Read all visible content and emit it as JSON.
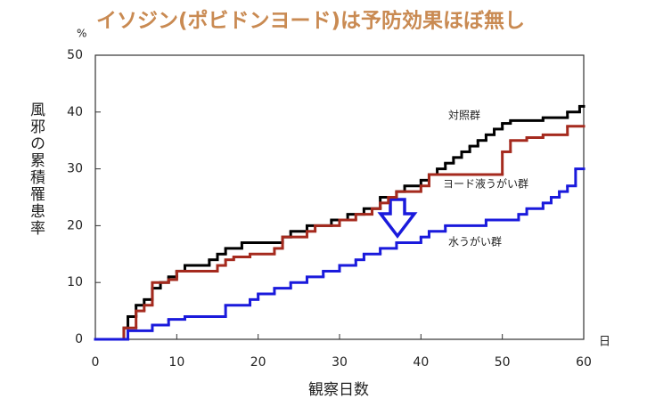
{
  "chart_data": {
    "type": "step",
    "title": "イソジン(ポビドンヨード)は予防効果ほぼ無し",
    "y_unit": "%",
    "x_unit": "日",
    "x_label": "観察日数",
    "y_label": "風邪の累積罹患率",
    "xlim": [
      0,
      60
    ],
    "xticks": [
      0,
      10,
      20,
      30,
      40,
      50,
      60
    ],
    "ylim": [
      0,
      50
    ],
    "yticks": [
      0,
      10,
      20,
      30,
      40,
      50
    ],
    "series": [
      {
        "name": "対照群",
        "color": "#000000",
        "x": [
          0,
          3.5,
          4,
          5,
          6,
          7,
          8,
          9,
          10,
          11,
          14,
          15,
          16,
          18,
          23,
          24,
          26,
          29,
          31,
          33,
          35,
          37,
          38,
          40,
          41,
          42,
          43,
          44,
          45,
          46,
          47,
          48,
          49,
          50,
          51,
          55,
          58,
          59.5
        ],
        "values": [
          0,
          2,
          4,
          6,
          7,
          9,
          10,
          11,
          12,
          13,
          14,
          15,
          16,
          17,
          18,
          19,
          20,
          21,
          22,
          23,
          25,
          26,
          27,
          28,
          29,
          30,
          31,
          32,
          33,
          34,
          35,
          36,
          37,
          38,
          38.5,
          39,
          40,
          41
        ]
      },
      {
        "name": "ヨード液うがい群",
        "color": "#a52a1e",
        "x": [
          0,
          3.5,
          5,
          6,
          7,
          9,
          10,
          15,
          16,
          17,
          19,
          22,
          23,
          26,
          27,
          30,
          32,
          34,
          35,
          36,
          37,
          40,
          41,
          50,
          51,
          53,
          55,
          58
        ],
        "values": [
          0,
          2,
          5,
          6,
          10,
          10.5,
          12,
          13,
          14,
          14.5,
          15,
          16,
          18,
          19,
          20,
          21,
          22,
          23,
          24,
          25,
          26,
          27,
          29,
          33,
          35,
          35.5,
          36,
          37.5
        ]
      },
      {
        "name": "水うがい群",
        "color": "#1a1adc",
        "x": [
          0,
          4,
          7,
          9,
          11,
          16,
          19,
          20,
          22,
          24,
          26,
          28,
          30,
          32,
          33,
          35,
          37,
          40,
          41,
          43,
          48,
          52,
          53,
          55,
          56,
          57,
          58,
          59
        ],
        "values": [
          0,
          1.5,
          2.5,
          3.5,
          4,
          6,
          7,
          8,
          9,
          10,
          11,
          12,
          13,
          14,
          15,
          16,
          17,
          18,
          19,
          20,
          21,
          22,
          23,
          24,
          25,
          26,
          27,
          30
        ]
      }
    ]
  }
}
